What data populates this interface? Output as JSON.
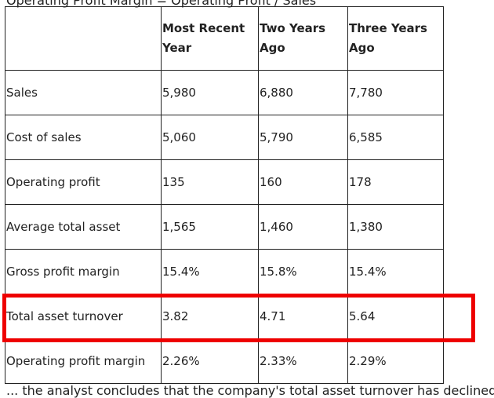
{
  "top_text": "Operating Profit Margin = Operating Profit / Sales",
  "table": {
    "headers": [
      "",
      "Most Recent Year",
      "Two Years Ago",
      "Three Years Ago"
    ],
    "rows": [
      [
        "Sales",
        "5,980",
        "6,880",
        "7,780"
      ],
      [
        "Cost of sales",
        "5,060",
        "5,790",
        "6,585"
      ],
      [
        "Operating profit",
        "135",
        "160",
        "178"
      ],
      [
        "Average total asset",
        "1,565",
        "1,460",
        "1,380"
      ],
      [
        "Gross profit margin",
        "15.4%",
        "15.8%",
        "15.4%"
      ],
      [
        "Total asset turnover",
        "3.82",
        "4.71",
        "5.64"
      ],
      [
        "Operating profit margin",
        "2.26%",
        "2.33%",
        "2.29%"
      ]
    ]
  },
  "highlight": {
    "row": "Total asset turnover",
    "color": "#ee0000"
  },
  "bottom_text": "... the analyst concludes that the company's total asset turnover has declined ..."
}
